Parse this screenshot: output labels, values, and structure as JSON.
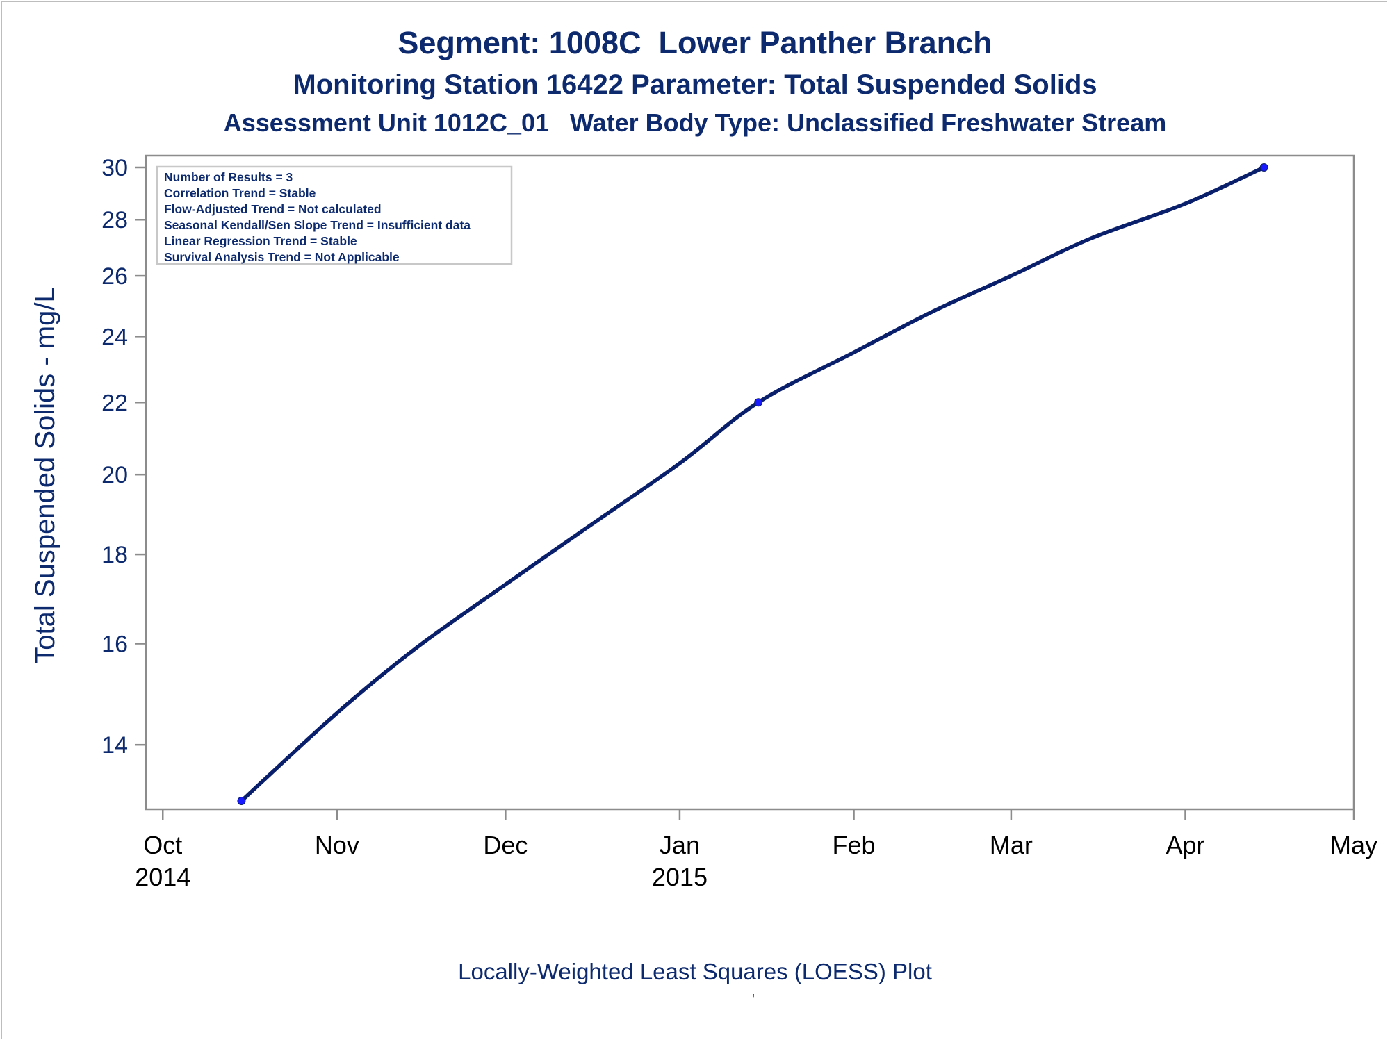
{
  "titles": {
    "line1": "Segment: 1008C  Lower Panther Branch",
    "line2": "Monitoring Station 16422 Parameter: Total Suspended Solids",
    "line3": "Assessment Unit 1012C_01   Water Body Type: Unclassified Freshwater Stream"
  },
  "footnote": "Locally-Weighted Least Squares (LOESS) Plot",
  "footnote_mark": "'",
  "stats_box": [
    "Number of Results = 3",
    "Correlation Trend = Stable",
    "Flow-Adjusted Trend = Not calculated",
    "Seasonal Kendall/Sen Slope Trend = Insufficient data",
    "Linear Regression Trend = Stable",
    "Survival Analysis Trend = Not Applicable"
  ],
  "colors": {
    "text": "#0d2a6e",
    "line": "#0a1f6b",
    "marker": "#1a1aff",
    "axis": "#8c8c8c",
    "tick_text": "#0d2a6e",
    "date_text": "#000000"
  },
  "chart_data": {
    "type": "line",
    "ylabel": "Total Suspended Solids - mg/L",
    "y_scale": "log",
    "ylim": [
      13,
      30
    ],
    "y_ticks": [
      14,
      16,
      18,
      20,
      22,
      24,
      26,
      28,
      30
    ],
    "xlim": [
      "2014-09-28",
      "2015-05-01"
    ],
    "x_ticks": [
      {
        "date": "2014-10-01",
        "label": "Oct",
        "sublabel": "2014"
      },
      {
        "date": "2014-11-01",
        "label": "Nov",
        "sublabel": ""
      },
      {
        "date": "2014-12-01",
        "label": "Dec",
        "sublabel": ""
      },
      {
        "date": "2015-01-01",
        "label": "Jan",
        "sublabel": "2015"
      },
      {
        "date": "2015-02-01",
        "label": "Feb",
        "sublabel": ""
      },
      {
        "date": "2015-03-01",
        "label": "Mar",
        "sublabel": ""
      },
      {
        "date": "2015-04-01",
        "label": "Apr",
        "sublabel": ""
      },
      {
        "date": "2015-05-01",
        "label": "May",
        "sublabel": ""
      }
    ],
    "points": [
      {
        "date": "2014-10-15",
        "value": 13
      },
      {
        "date": "2015-01-15",
        "value": 22
      },
      {
        "date": "2015-04-15",
        "value": 30
      }
    ],
    "loess": [
      {
        "date": "2014-10-15",
        "value": 13.0
      },
      {
        "date": "2014-11-01",
        "value": 14.6
      },
      {
        "date": "2014-11-15",
        "value": 15.9
      },
      {
        "date": "2014-12-01",
        "value": 17.3
      },
      {
        "date": "2014-12-15",
        "value": 18.6
      },
      {
        "date": "2015-01-01",
        "value": 20.3
      },
      {
        "date": "2015-01-15",
        "value": 22.0
      },
      {
        "date": "2015-02-01",
        "value": 23.5
      },
      {
        "date": "2015-02-15",
        "value": 24.8
      },
      {
        "date": "2015-03-01",
        "value": 26.0
      },
      {
        "date": "2015-03-15",
        "value": 27.3
      },
      {
        "date": "2015-04-01",
        "value": 28.6
      },
      {
        "date": "2015-04-15",
        "value": 30.0
      }
    ],
    "grid": false,
    "legend": "none"
  }
}
